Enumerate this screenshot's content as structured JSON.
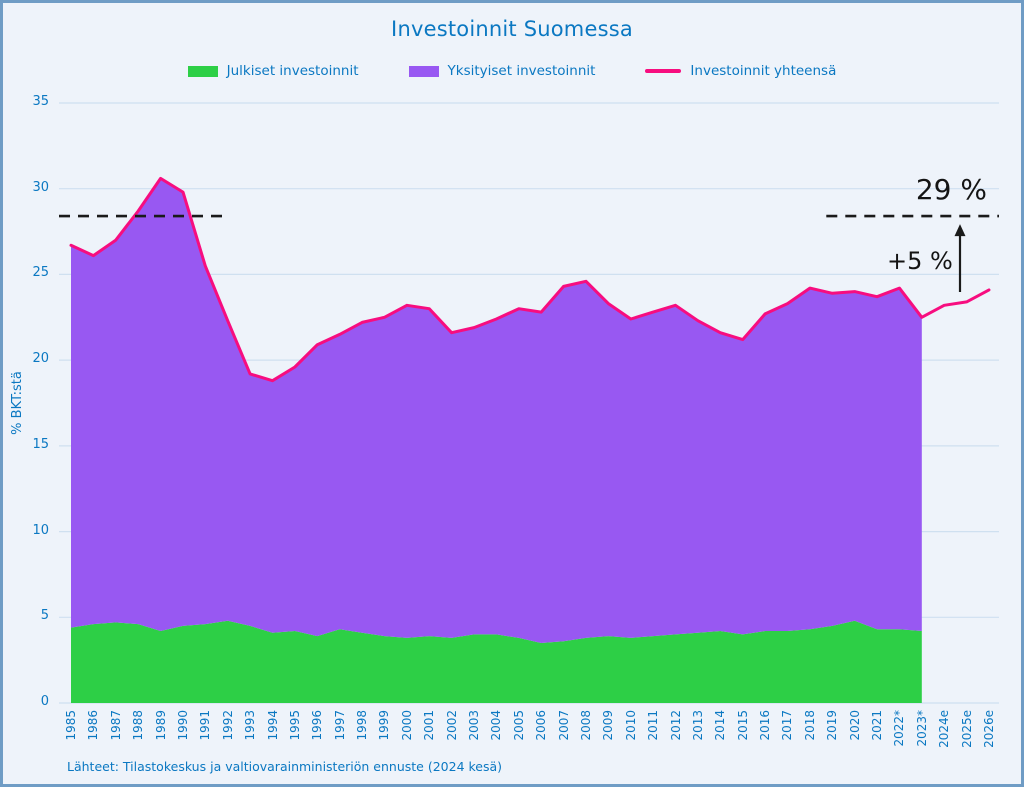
{
  "title": "Investoinnit Suomessa",
  "ylabel": "% BKT:stä",
  "source": "Lähteet: Tilastokeskus ja valtiovarainministeriön ennuste (2024 kesä)",
  "colors": {
    "green": "#2dcf46",
    "purple": "#9858f2",
    "pink": "#f70d7f",
    "text_blue": "#0b78c2",
    "grid": "#cfe0f0",
    "dashed": "#1a1a1a",
    "background": "#eef3fa",
    "border": "#6f9cc5"
  },
  "legend": [
    {
      "label": "Julkiset investoinnit",
      "color": "#2dcf46",
      "type": "area"
    },
    {
      "label": "Yksityiset investoinnit",
      "color": "#9858f2",
      "type": "area"
    },
    {
      "label": "Investoinnit yhteensä",
      "color": "#f70d7f",
      "type": "line"
    }
  ],
  "annotations": {
    "target_label": "29 %",
    "gap_label": "+5 %",
    "dashed_value": 28.4,
    "dashed_left_span": [
      "1985",
      "1992"
    ],
    "dashed_right_span": [
      "2019",
      "2026e"
    ]
  },
  "chart_data": {
    "type": "area",
    "title": "Investoinnit Suomessa",
    "xlabel": "",
    "ylabel": "% BKT:stä",
    "ylim": [
      0,
      35
    ],
    "yticks": [
      0,
      5,
      10,
      15,
      20,
      25,
      30,
      35
    ],
    "grid": true,
    "legend_position": "top",
    "categories": [
      "1985",
      "1986",
      "1987",
      "1988",
      "1989",
      "1990",
      "1991",
      "1992",
      "1993",
      "1994",
      "1995",
      "1996",
      "1997",
      "1998",
      "1999",
      "2000",
      "2001",
      "2002",
      "2003",
      "2004",
      "2005",
      "2006",
      "2007",
      "2008",
      "2009",
      "2010",
      "2011",
      "2012",
      "2013",
      "2014",
      "2015",
      "2016",
      "2017",
      "2018",
      "2019",
      "2020",
      "2021",
      "2022*",
      "2023*",
      "2024e",
      "2025e",
      "2026e"
    ],
    "series": [
      {
        "name": "Julkiset investoinnit",
        "values": [
          4.4,
          4.6,
          4.7,
          4.6,
          4.2,
          4.5,
          4.6,
          4.8,
          4.5,
          4.1,
          4.2,
          3.9,
          4.3,
          4.1,
          3.9,
          3.8,
          3.9,
          3.8,
          4.0,
          4.0,
          3.8,
          3.5,
          3.6,
          3.8,
          3.9,
          3.8,
          3.9,
          4.0,
          4.1,
          4.2,
          4.0,
          4.2,
          4.2,
          4.3,
          4.5,
          4.8,
          4.3,
          4.3,
          4.2,
          null,
          null,
          null
        ]
      },
      {
        "name": "Yksityiset investoinnit",
        "values": [
          22.3,
          21.5,
          22.3,
          24.1,
          26.4,
          25.3,
          20.9,
          17.5,
          14.7,
          14.7,
          15.4,
          17.0,
          17.2,
          18.1,
          18.6,
          19.4,
          19.1,
          17.8,
          17.9,
          18.4,
          19.2,
          19.3,
          20.7,
          20.8,
          19.4,
          18.6,
          18.9,
          19.2,
          18.2,
          17.4,
          17.2,
          18.5,
          19.1,
          19.9,
          19.4,
          19.2,
          19.4,
          19.9,
          18.3,
          null,
          null,
          null
        ]
      },
      {
        "name": "Investoinnit yhteensä",
        "values": [
          26.7,
          26.1,
          27.0,
          28.7,
          30.6,
          29.8,
          25.5,
          22.3,
          19.2,
          18.8,
          19.6,
          20.9,
          21.5,
          22.2,
          22.5,
          23.2,
          23.0,
          21.6,
          21.9,
          22.4,
          23.0,
          22.8,
          24.3,
          24.6,
          23.3,
          22.4,
          22.8,
          23.2,
          22.3,
          21.6,
          21.2,
          22.7,
          23.3,
          24.2,
          23.9,
          24.0,
          23.7,
          24.2,
          22.5,
          23.2,
          23.4,
          24.1
        ]
      }
    ]
  }
}
